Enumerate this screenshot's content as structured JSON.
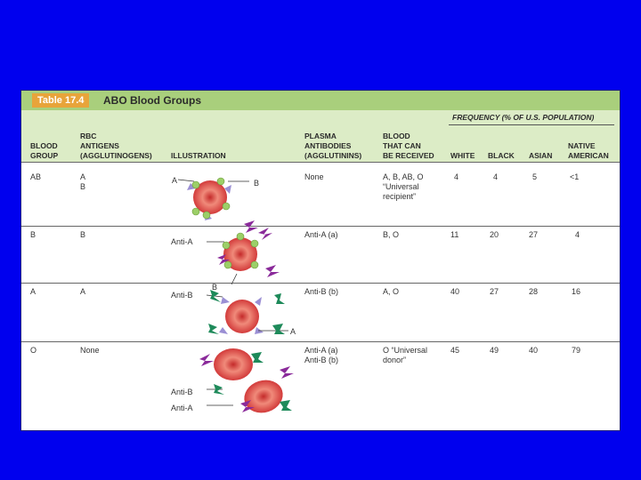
{
  "table": {
    "number": "Table 17.4",
    "title": "ABO Blood Groups",
    "frequency_header": "FREQUENCY (% OF U.S. POPULATION)",
    "columns": {
      "blood_group": "BLOOD\nGROUP",
      "rbc_antigens": "RBC\nANTIGENS\n(AGGLUTINOGENS)",
      "illustration": "ILLUSTRATION",
      "plasma_antibodies": "PLASMA\nANTIBODIES\n(AGGLUTININS)",
      "blood_received": "BLOOD\nTHAT CAN\nBE RECEIVED",
      "white": "WHITE",
      "black": "BLACK",
      "asian": "ASIAN",
      "native_american": "NATIVE\nAMERICAN"
    },
    "rows": [
      {
        "group": "AB",
        "antigens": "A\nB",
        "antibodies": "None",
        "received": "A, B, AB, O\n“Universal\nrecipient”",
        "white": "4",
        "black": "4",
        "asian": "5",
        "native": "<1"
      },
      {
        "group": "B",
        "antigens": "B",
        "antibodies": "Anti-A (a)",
        "received": "B, O",
        "white": "11",
        "black": "20",
        "asian": "27",
        "native": "4"
      },
      {
        "group": "A",
        "antigens": "A",
        "antibodies": "Anti-B (b)",
        "received": "A, O",
        "white": "40",
        "black": "27",
        "asian": "28",
        "native": "16"
      },
      {
        "group": "O",
        "antigens": "None",
        "antibodies": "Anti-A (a)\nAnti-B (b)",
        "received": "O “Universal\ndonor”",
        "white": "45",
        "black": "49",
        "asian": "40",
        "native": "79"
      }
    ],
    "illustration_labels": {
      "ab_a": "A",
      "ab_b": "B",
      "b_anti_a": "Anti-A",
      "b_b": "B",
      "a_anti_b": "Anti-B",
      "a_a": "A",
      "o_anti_b": "Anti-B",
      "o_anti_a": "Anti-A"
    }
  },
  "colors": {
    "background": "#0000ee",
    "title_bar": "#a9cf7c",
    "header": "#dcecc6",
    "table_number": "#e8a43a",
    "cell": "#d23a3a",
    "antigen_a": "#9b8fd4",
    "antigen_b": "#9ccf68",
    "anti_a": "#8a2a9a",
    "anti_b": "#1e8a5a"
  }
}
